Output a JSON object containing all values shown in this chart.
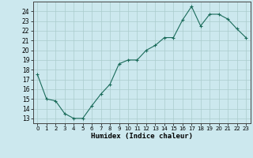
{
  "x": [
    0,
    1,
    2,
    3,
    4,
    5,
    6,
    7,
    8,
    9,
    10,
    11,
    12,
    13,
    14,
    15,
    16,
    17,
    18,
    19,
    20,
    21,
    22,
    23
  ],
  "y": [
    17.5,
    15.0,
    14.8,
    13.5,
    13.0,
    13.0,
    14.3,
    15.5,
    16.5,
    18.6,
    19.0,
    19.0,
    20.0,
    20.5,
    21.3,
    21.3,
    23.1,
    24.5,
    22.5,
    23.7,
    23.7,
    23.2,
    22.2,
    21.3
  ],
  "title": "",
  "xlabel": "Humidex (Indice chaleur)",
  "ylabel": "",
  "xlim": [
    -0.5,
    23.5
  ],
  "ylim": [
    12.5,
    25.0
  ],
  "yticks": [
    13,
    14,
    15,
    16,
    17,
    18,
    19,
    20,
    21,
    22,
    23,
    24
  ],
  "xticks": [
    0,
    1,
    2,
    3,
    4,
    5,
    6,
    7,
    8,
    9,
    10,
    11,
    12,
    13,
    14,
    15,
    16,
    17,
    18,
    19,
    20,
    21,
    22,
    23
  ],
  "line_color": "#1a6b5a",
  "marker": "+",
  "bg_color": "#cce8ee",
  "grid_color": "#aacccc",
  "fig_width": 3.2,
  "fig_height": 2.0,
  "dpi": 100
}
